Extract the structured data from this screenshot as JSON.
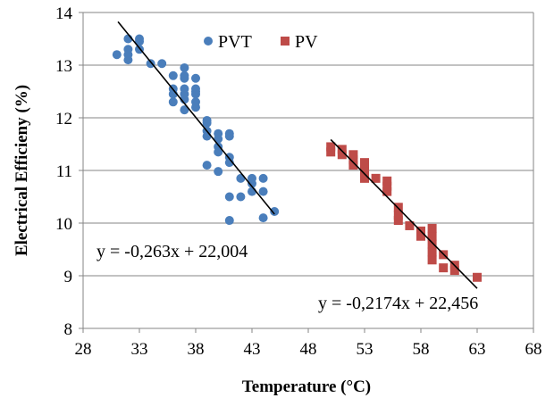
{
  "chart_data": {
    "type": "scatter",
    "xlabel": "Temperature (°C)",
    "ylabel": "Electrical Efficieny (%)",
    "xlim": [
      28,
      68
    ],
    "ylim": [
      8,
      14
    ],
    "xticks": [
      28,
      33,
      38,
      43,
      48,
      53,
      58,
      63,
      68
    ],
    "yticks": [
      8,
      9,
      10,
      11,
      12,
      13,
      14
    ],
    "grid": "horizontal",
    "legend": "top-center",
    "series": [
      {
        "name": "PVT",
        "color": "#4a7ebb",
        "marker": "circle",
        "points": [
          [
            31,
            13.2
          ],
          [
            32,
            13.1
          ],
          [
            32,
            13.2
          ],
          [
            32,
            13.3
          ],
          [
            32,
            13.5
          ],
          [
            33,
            13.3
          ],
          [
            33,
            13.45
          ],
          [
            33,
            13.5
          ],
          [
            34,
            13.03
          ],
          [
            35,
            13.03
          ],
          [
            36,
            12.3
          ],
          [
            36,
            12.45
          ],
          [
            36,
            12.55
          ],
          [
            36,
            12.8
          ],
          [
            37,
            12.15
          ],
          [
            37,
            12.35
          ],
          [
            37,
            12.45
          ],
          [
            37,
            12.55
          ],
          [
            37,
            12.75
          ],
          [
            37,
            12.8
          ],
          [
            37,
            12.95
          ],
          [
            38,
            12.2
          ],
          [
            38,
            12.3
          ],
          [
            38,
            12.45
          ],
          [
            38,
            12.5
          ],
          [
            38,
            12.55
          ],
          [
            38,
            12.75
          ],
          [
            39,
            11.65
          ],
          [
            39,
            11.75
          ],
          [
            39,
            11.9
          ],
          [
            39,
            11.95
          ],
          [
            39,
            11.1
          ],
          [
            40,
            11.35
          ],
          [
            40,
            11.45
          ],
          [
            40,
            11.6
          ],
          [
            40,
            11.7
          ],
          [
            40,
            10.98
          ],
          [
            41,
            11.15
          ],
          [
            41,
            11.25
          ],
          [
            41,
            11.65
          ],
          [
            41,
            11.7
          ],
          [
            41,
            10.5
          ],
          [
            41,
            10.05
          ],
          [
            42,
            10.5
          ],
          [
            42,
            10.85
          ],
          [
            43,
            10.6
          ],
          [
            43,
            10.75
          ],
          [
            43,
            10.85
          ],
          [
            44,
            10.1
          ],
          [
            44,
            10.6
          ],
          [
            44,
            10.85
          ],
          [
            45,
            10.22
          ]
        ],
        "trendline": {
          "x_start": 31.1,
          "x_end": 45,
          "label": "y = -0,263x + 22,004"
        }
      },
      {
        "name": "PV",
        "color": "#be4b48",
        "marker": "square",
        "points": [
          [
            50,
            11.35
          ],
          [
            50,
            11.45
          ],
          [
            51,
            11.3
          ],
          [
            51,
            11.4
          ],
          [
            52,
            11.1
          ],
          [
            52,
            11.2
          ],
          [
            52,
            11.3
          ],
          [
            53,
            10.85
          ],
          [
            53,
            10.95
          ],
          [
            53,
            11.05
          ],
          [
            53,
            11.15
          ],
          [
            54,
            10.85
          ],
          [
            55,
            10.6
          ],
          [
            55,
            10.7
          ],
          [
            55,
            10.8
          ],
          [
            56,
            10.05
          ],
          [
            56,
            10.15
          ],
          [
            56,
            10.3
          ],
          [
            57,
            9.95
          ],
          [
            58,
            9.75
          ],
          [
            58,
            9.85
          ],
          [
            59,
            9.3
          ],
          [
            59,
            9.45
          ],
          [
            59,
            9.6
          ],
          [
            59,
            9.75
          ],
          [
            59,
            9.9
          ],
          [
            60,
            9.15
          ],
          [
            60,
            9.4
          ],
          [
            61,
            9.1
          ],
          [
            61,
            9.2
          ],
          [
            63,
            8.97
          ]
        ],
        "trendline": {
          "x_start": 50,
          "x_end": 63,
          "label": "y = -0,2174x + 22,456"
        }
      }
    ]
  }
}
